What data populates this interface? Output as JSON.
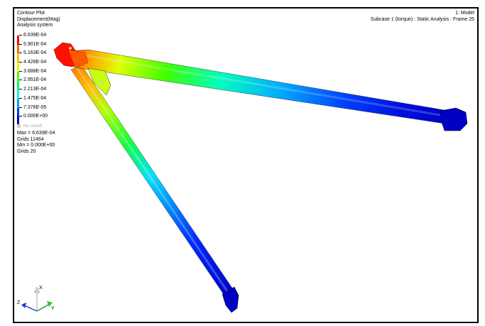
{
  "header": {
    "plot_title": "Contour Plot",
    "result_type": "Displacement(Mag)",
    "system": "Analysis system",
    "model_label": "1: Model",
    "subcase": "Subcase 1 (torque) : Static Analysis : Frame 25"
  },
  "legend": {
    "levels": [
      {
        "value": "6.639E-04",
        "color": "#ff0000"
      },
      {
        "value": "5.901E-04",
        "color": "#ff6a00"
      },
      {
        "value": "5.163E-04",
        "color": "#ffbf00"
      },
      {
        "value": "4.426E-04",
        "color": "#d8ff00"
      },
      {
        "value": "3.688E-04",
        "color": "#52ff00"
      },
      {
        "value": "2.951E-04",
        "color": "#00ff55"
      },
      {
        "value": "2.213E-04",
        "color": "#00ffd0"
      },
      {
        "value": "1.475E-04",
        "color": "#00a0ff"
      },
      {
        "value": "7.376E-05",
        "color": "#0030ff"
      },
      {
        "value": "0.000E+00",
        "color": "#0000b0"
      }
    ],
    "no_result": "No result"
  },
  "stats": {
    "max": "Max = 6.639E-04",
    "max_grids": "Grids 11464",
    "min": "Min = 0.000E+00",
    "min_grids": "Grids 20"
  },
  "triad": {
    "x": "X",
    "y": "Y",
    "z": "Z"
  }
}
